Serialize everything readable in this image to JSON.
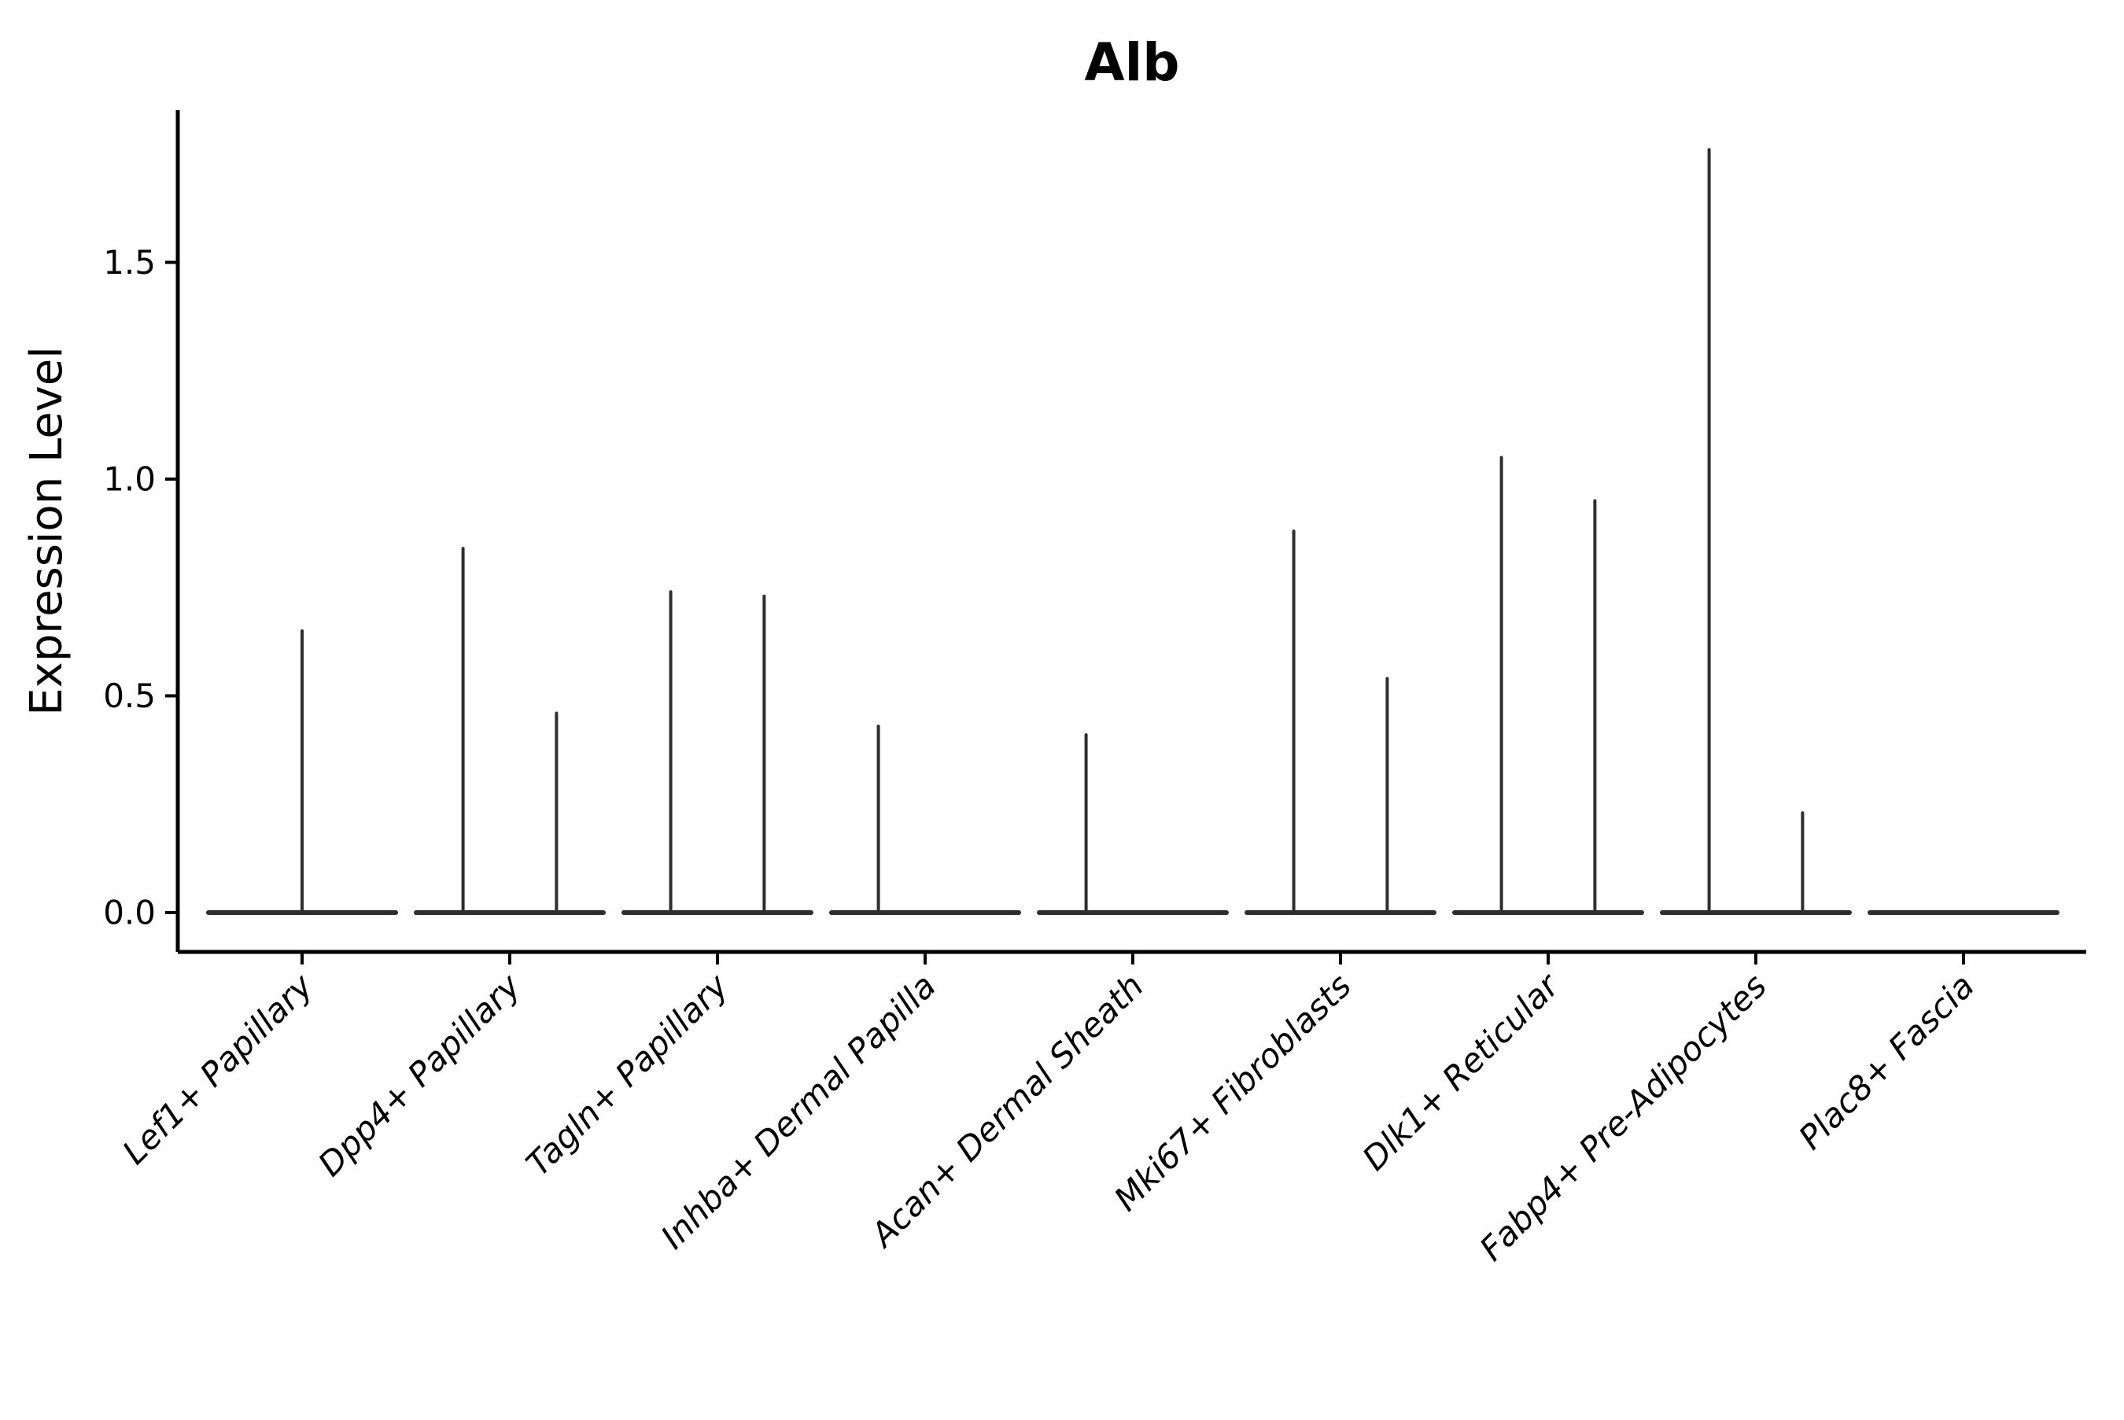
{
  "title": "Alb",
  "chart_data": {
    "type": "violin",
    "title": "Alb",
    "xlabel": "",
    "ylabel": "Expression Level",
    "ytick_labels": [
      "0.0",
      "0.5",
      "1.0",
      "1.5"
    ],
    "ytick_values": [
      0.0,
      0.5,
      1.0,
      1.5
    ],
    "ylim": [
      -0.09,
      1.85
    ],
    "grid": false,
    "legend": null,
    "categories": [
      "Lef1+ Papillary",
      "Dpp4+ Papillary",
      "Tagln+ Papillary",
      "Inhba+ Dermal Papilla",
      "Acan+ Dermal Sheath",
      "Mki67+ Fibroblasts",
      "Dlk1+ Reticular",
      "Fabp4+ Pre-Adipocytes",
      "Plac8+ Fascia"
    ],
    "baseline_value": 0.0,
    "violins": [
      {
        "category": "Lef1+ Papillary",
        "spikes": [
          {
            "offset": 0.0,
            "max": 0.65
          }
        ]
      },
      {
        "category": "Dpp4+ Papillary",
        "spikes": [
          {
            "offset": -0.225,
            "max": 0.84
          },
          {
            "offset": 0.225,
            "max": 0.46
          }
        ]
      },
      {
        "category": "Tagln+ Papillary",
        "spikes": [
          {
            "offset": -0.225,
            "max": 0.74
          },
          {
            "offset": 0.225,
            "max": 0.73
          }
        ]
      },
      {
        "category": "Inhba+ Dermal Papilla",
        "spikes": [
          {
            "offset": -0.225,
            "max": 0.43
          }
        ]
      },
      {
        "category": "Acan+ Dermal Sheath",
        "spikes": [
          {
            "offset": -0.225,
            "max": 0.41
          }
        ]
      },
      {
        "category": "Mki67+ Fibroblasts",
        "spikes": [
          {
            "offset": -0.225,
            "max": 0.88
          },
          {
            "offset": 0.225,
            "max": 0.54
          }
        ]
      },
      {
        "category": "Dlk1+ Reticular",
        "spikes": [
          {
            "offset": -0.225,
            "max": 1.05
          },
          {
            "offset": 0.225,
            "max": 0.95
          }
        ]
      },
      {
        "category": "Fabp4+ Pre-Adipocytes",
        "spikes": [
          {
            "offset": -0.225,
            "max": 1.76
          },
          {
            "offset": 0.225,
            "max": 0.23
          }
        ]
      },
      {
        "category": "Plac8+ Fascia",
        "spikes": []
      }
    ],
    "colors": {
      "violin_line": "#2e2e2e",
      "axis": "#000000",
      "text": "#000000",
      "background": "#ffffff"
    }
  }
}
